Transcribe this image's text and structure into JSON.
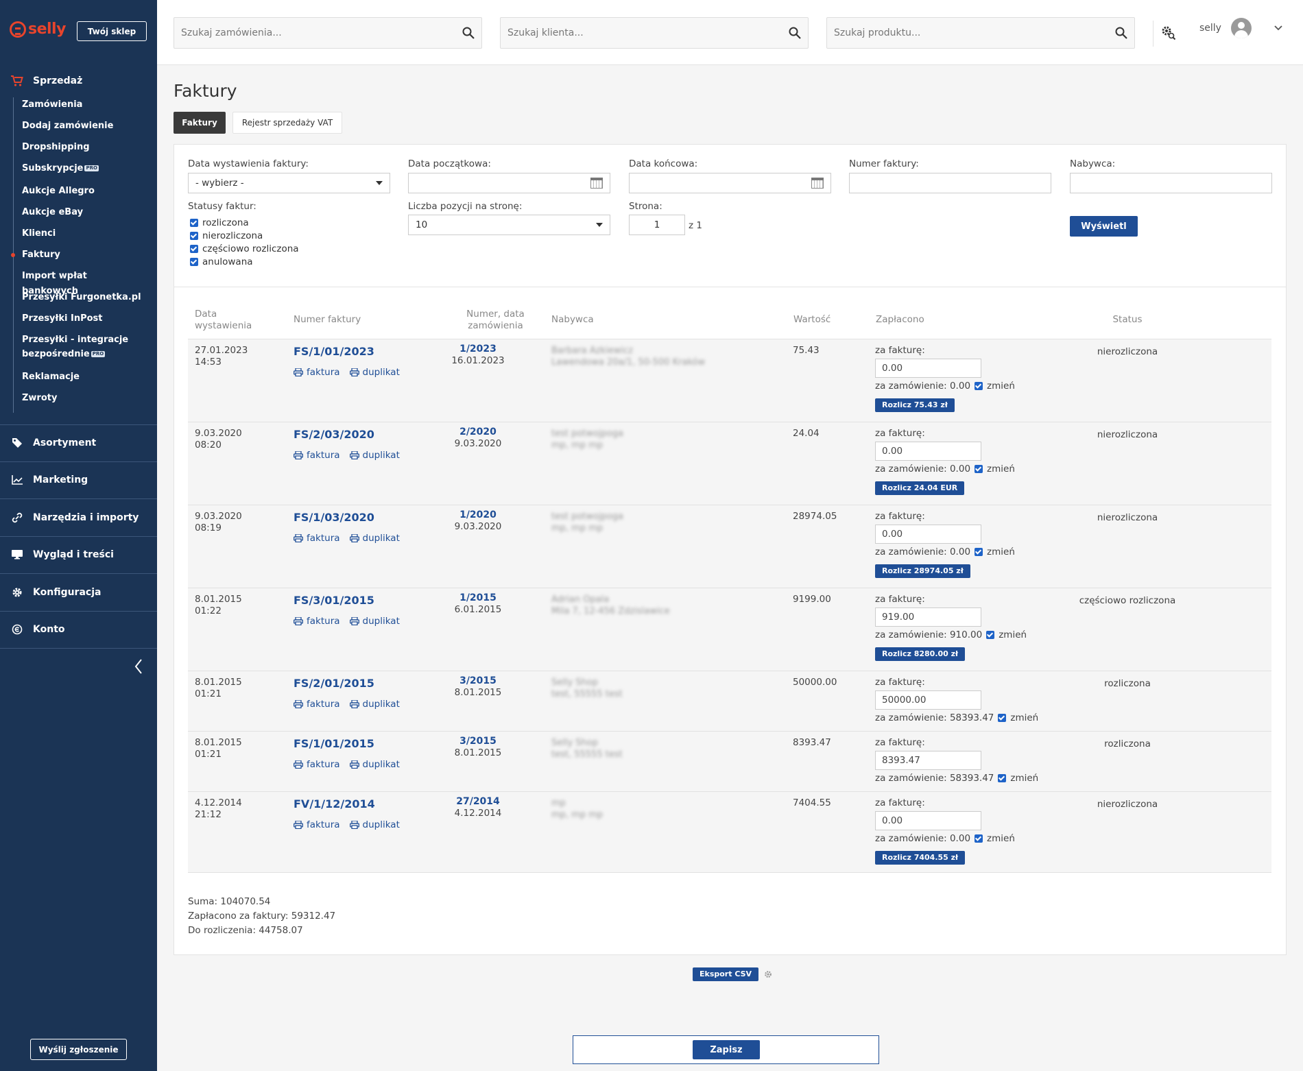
{
  "brand": {
    "name": "selly"
  },
  "sidebar": {
    "shop_button": "Twój sklep",
    "sales": {
      "label": "Sprzedaż"
    },
    "sales_items": [
      {
        "label": "Zamówienia",
        "pro": ""
      },
      {
        "label": "Dodaj zamówienie",
        "pro": ""
      },
      {
        "label": "Dropshipping",
        "pro": ""
      },
      {
        "label": "Subskrypcje",
        "pro": "PRO"
      },
      {
        "label": "Aukcje Allegro",
        "pro": ""
      },
      {
        "label": "Aukcje eBay",
        "pro": ""
      },
      {
        "label": "Klienci",
        "pro": ""
      },
      {
        "label": "Faktury",
        "pro": ""
      },
      {
        "label": "Import wpłat bankowych",
        "pro": ""
      },
      {
        "label": "Przesyłki Furgonetka.pl",
        "pro": ""
      },
      {
        "label": "Przesyłki InPost",
        "pro": ""
      },
      {
        "label": "Przesyłki - integracje bezpośrednie",
        "pro": "PRO"
      },
      {
        "label": "Reklamacje",
        "pro": ""
      },
      {
        "label": "Zwroty",
        "pro": ""
      }
    ],
    "active_item": "Faktury",
    "sections": [
      {
        "label": "Asortyment",
        "icon": "tag-icon"
      },
      {
        "label": "Marketing",
        "icon": "chart-icon"
      },
      {
        "label": "Narzędzia i importy",
        "icon": "link-icon"
      },
      {
        "label": "Wygląd i treści",
        "icon": "monitor-icon"
      },
      {
        "label": "Konfiguracja",
        "icon": "gear-icon"
      },
      {
        "label": "Konto",
        "icon": "account-icon"
      }
    ],
    "report_button": "Wyślij zgłoszenie"
  },
  "topbar": {
    "search_orders_placeholder": "Szukaj zamówienia...",
    "search_clients_placeholder": "Szukaj klienta...",
    "search_products_placeholder": "Szukaj produktu...",
    "username": "selly"
  },
  "page": {
    "title": "Faktury",
    "tabs": [
      {
        "label": "Faktury",
        "active": true
      },
      {
        "label": "Rejestr sprzedaży VAT",
        "active": false
      }
    ]
  },
  "filters": {
    "issue_date_label": "Data wystawienia faktury:",
    "issue_date_value": "- wybierz -",
    "start_date_label": "Data początkowa:",
    "start_date_value": "",
    "end_date_label": "Data końcowa:",
    "end_date_value": "",
    "invoice_number_label": "Numer faktury:",
    "invoice_number_value": "",
    "buyer_label": "Nabywca:",
    "buyer_value": "",
    "statuses_label": "Statusy faktur:",
    "statuses": [
      {
        "label": "rozliczona",
        "checked": true
      },
      {
        "label": "nierozliczona",
        "checked": true
      },
      {
        "label": "częściowo rozliczona",
        "checked": true
      },
      {
        "label": "anulowana",
        "checked": true
      }
    ],
    "per_page_label": "Liczba pozycji na stronę:",
    "per_page_value": "10",
    "page_label": "Strona:",
    "page_value": "1",
    "page_total": "z 1",
    "show_button": "Wyświetl"
  },
  "table": {
    "headers": {
      "date": "Data wystawienia",
      "invoice_number": "Numer faktury",
      "order": "Numer, data zamówienia",
      "buyer": "Nabywca",
      "value": "Wartość",
      "paid": "Zapłacono",
      "status": "Status"
    },
    "labels": {
      "print_invoice": "faktura",
      "print_duplicate": "duplikat",
      "for_invoice": "za fakturę:",
      "change": "zmień"
    },
    "rows": [
      {
        "date": "27.01.2023",
        "time": "14:53",
        "invoice": "FS/1/01/2023",
        "order_no": "1/2023",
        "order_date": "16.01.2023",
        "buyer_name": "Barbara Azkiewicz",
        "buyer_addr": "Lawendowa 20a/1, 50-500 Kraków",
        "value": "75.43",
        "paid_invoice": "0.00",
        "paid_order": "za zamówienie: 0.00",
        "settle": "Rozlicz 75.43 zł",
        "status": "nierozliczona"
      },
      {
        "date": "9.03.2020",
        "time": "08:20",
        "invoice": "FS/2/03/2020",
        "order_no": "2/2020",
        "order_date": "9.03.2020",
        "buyer_name": "test potwojpoga",
        "buyer_addr": "mp, mp mp",
        "value": "24.04",
        "paid_invoice": "0.00",
        "paid_order": "za zamówienie: 0.00",
        "settle": "Rozlicz 24.04 EUR",
        "status": "nierozliczona"
      },
      {
        "date": "9.03.2020",
        "time": "08:19",
        "invoice": "FS/1/03/2020",
        "order_no": "1/2020",
        "order_date": "9.03.2020",
        "buyer_name": "test potwojpoga",
        "buyer_addr": "mp, mp mp",
        "value": "28974.05",
        "paid_invoice": "0.00",
        "paid_order": "za zamówienie: 0.00",
        "settle": "Rozlicz 28974.05 zł",
        "status": "nierozliczona"
      },
      {
        "date": "8.01.2015",
        "time": "01:22",
        "invoice": "FS/3/01/2015",
        "order_no": "1/2015",
        "order_date": "6.01.2015",
        "buyer_name": "Adrian Opala",
        "buyer_addr": "Mila 7, 12-456 Zdzislawice",
        "value": "9199.00",
        "paid_invoice": "919.00",
        "paid_order": "za zamówienie: 910.00",
        "settle": "Rozlicz 8280.00 zł",
        "status": "częściowo rozliczona"
      },
      {
        "date": "8.01.2015",
        "time": "01:21",
        "invoice": "FS/2/01/2015",
        "order_no": "3/2015",
        "order_date": "8.01.2015",
        "buyer_name": "Selly Shop",
        "buyer_addr": "test, 55555 test",
        "value": "50000.00",
        "paid_invoice": "50000.00",
        "paid_order": "za zamówienie: 58393.47",
        "settle": "",
        "status": "rozliczona"
      },
      {
        "date": "8.01.2015",
        "time": "01:21",
        "invoice": "FS/1/01/2015",
        "order_no": "3/2015",
        "order_date": "8.01.2015",
        "buyer_name": "Selly Shop",
        "buyer_addr": "test, 55555 test",
        "value": "8393.47",
        "paid_invoice": "8393.47",
        "paid_order": "za zamówienie: 58393.47",
        "settle": "",
        "status": "rozliczona"
      },
      {
        "date": "4.12.2014",
        "time": "21:12",
        "invoice": "FV/1/12/2014",
        "order_no": "27/2014",
        "order_date": "4.12.2014",
        "buyer_name": "mp",
        "buyer_addr": "mp, mp mp",
        "value": "7404.55",
        "paid_invoice": "0.00",
        "paid_order": "za zamówienie: 0.00",
        "settle": "Rozlicz 7404.55 zł",
        "status": "nierozliczona"
      }
    ]
  },
  "summary": {
    "sum": "Suma: 104070.54",
    "paid": "Zapłacono za faktury: 59312.47",
    "due": "Do rozliczenia: 44758.07"
  },
  "export_button": "Eksport CSV",
  "save_button": "Zapisz",
  "colors": {
    "sidebar": "#1b3455",
    "accent": "#e8442c",
    "primary": "#1f4e96"
  }
}
